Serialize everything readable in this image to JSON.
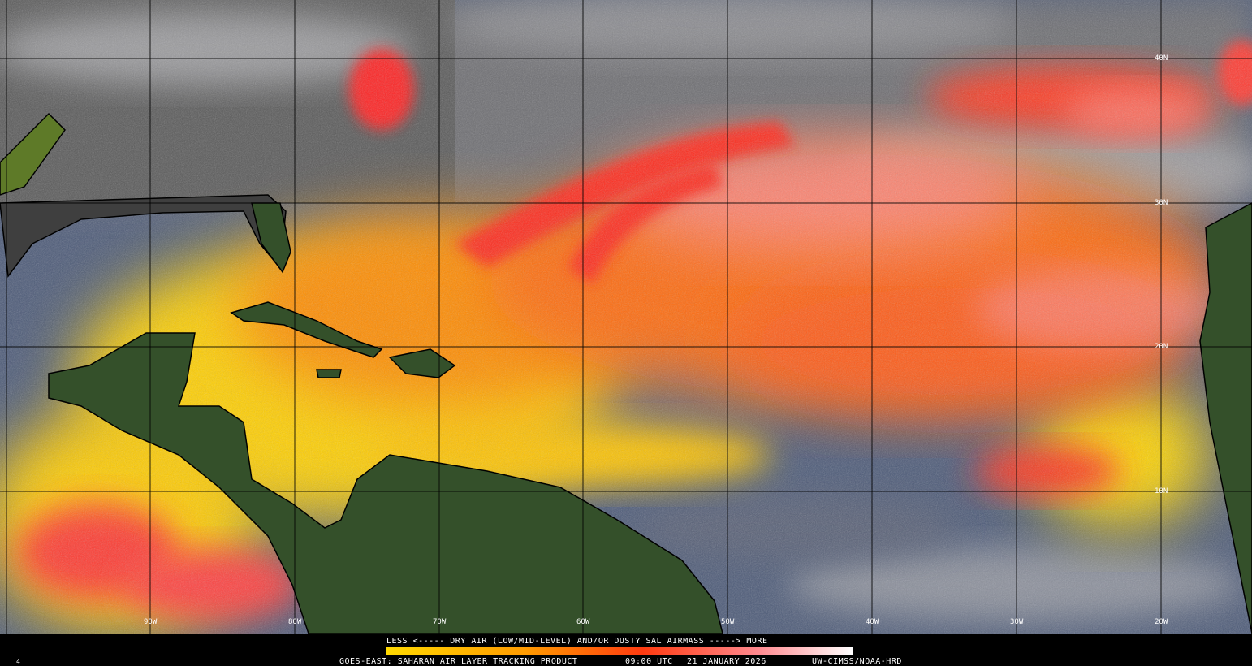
{
  "map": {
    "lat_labels": [
      "40N",
      "30N",
      "20N",
      "10N"
    ],
    "lon_labels": [
      "90W",
      "80W",
      "70W",
      "60W",
      "50W",
      "40W",
      "30W",
      "20W"
    ],
    "legend_text": "LESS <----- DRY AIR (LOW/MID-LEVEL) AND/OR DUSTY SAL AIRMASS -----> MORE"
  },
  "footer": {
    "frame": "4",
    "product": "GOES-EAST: SAHARAN AIR LAYER TRACKING PRODUCT",
    "time": "09:00 UTC",
    "date": "21 JANUARY 2026",
    "credit": "UW-CIMSS/NOAA-HRD"
  }
}
